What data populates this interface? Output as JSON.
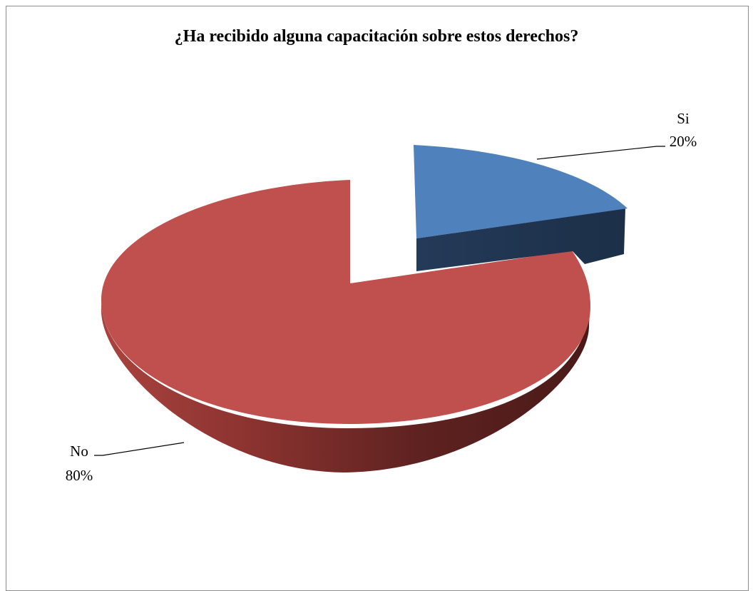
{
  "chart_data": {
    "type": "pie",
    "title": "¿Ha recibido alguna capacitación sobre estos derechos?",
    "three_d": true,
    "exploded": true,
    "categories": [
      "Si",
      "No"
    ],
    "values": [
      20,
      80
    ],
    "value_labels": [
      "20%",
      "80%"
    ],
    "colors": {
      "Si": "#4f81bd",
      "No": "#c0504d"
    },
    "legend": "none"
  }
}
